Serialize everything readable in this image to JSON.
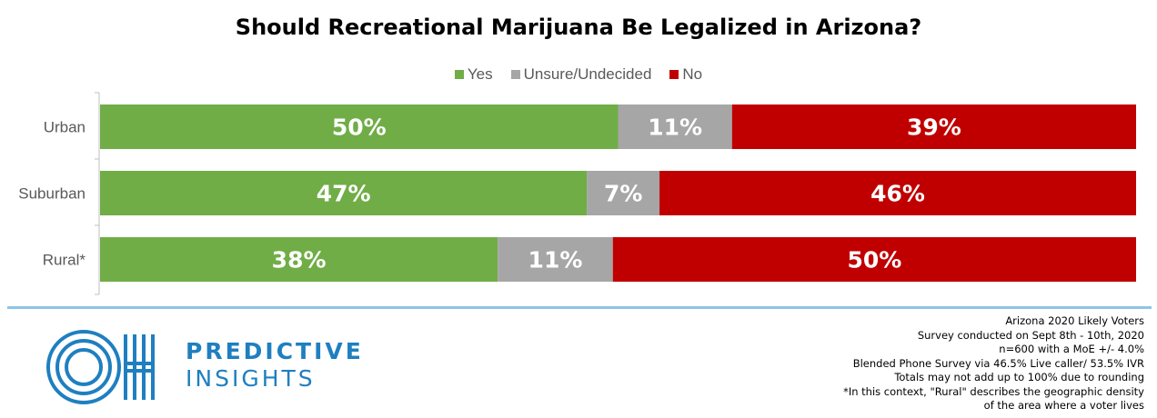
{
  "chart_data": {
    "type": "bar",
    "orientation": "horizontal",
    "stacked": true,
    "normalized": true,
    "title": "Should Recreational Marijuana Be Legalized in Arizona?",
    "categories": [
      "Urban",
      "Suburban",
      "Rural*"
    ],
    "series": [
      {
        "name": "Yes",
        "values": [
          50,
          47,
          38
        ],
        "labels": [
          "50%",
          "47%",
          "38%"
        ],
        "color": "#70ad47"
      },
      {
        "name": "Unsure/Undecided",
        "values": [
          11,
          7,
          11
        ],
        "labels": [
          "11%",
          "7%",
          "11%"
        ],
        "color": "#a6a6a6"
      },
      {
        "name": "No",
        "values": [
          39,
          46,
          50
        ],
        "labels": [
          "39%",
          "46%",
          "50%"
        ],
        "color": "#c00000"
      }
    ],
    "legend_position": "top",
    "grid": false
  },
  "branding": {
    "line1": "PREDICTIVE",
    "line2": "INSIGHTS",
    "color": "#1f7fc0"
  },
  "notes": [
    "Arizona 2020 Likely Voters",
    "Survey conducted on Sept 8th - 10th, 2020",
    "n=600 with a MoE +/- 4.0%",
    "Blended Phone Survey via 46.5% Live caller/ 53.5% IVR",
    "Totals may not add up to 100% due to rounding",
    "*In this context, \"Rural\" describes the geographic density",
    "of the area where a voter lives"
  ],
  "colors": {
    "divider": "#8ec4e6"
  }
}
